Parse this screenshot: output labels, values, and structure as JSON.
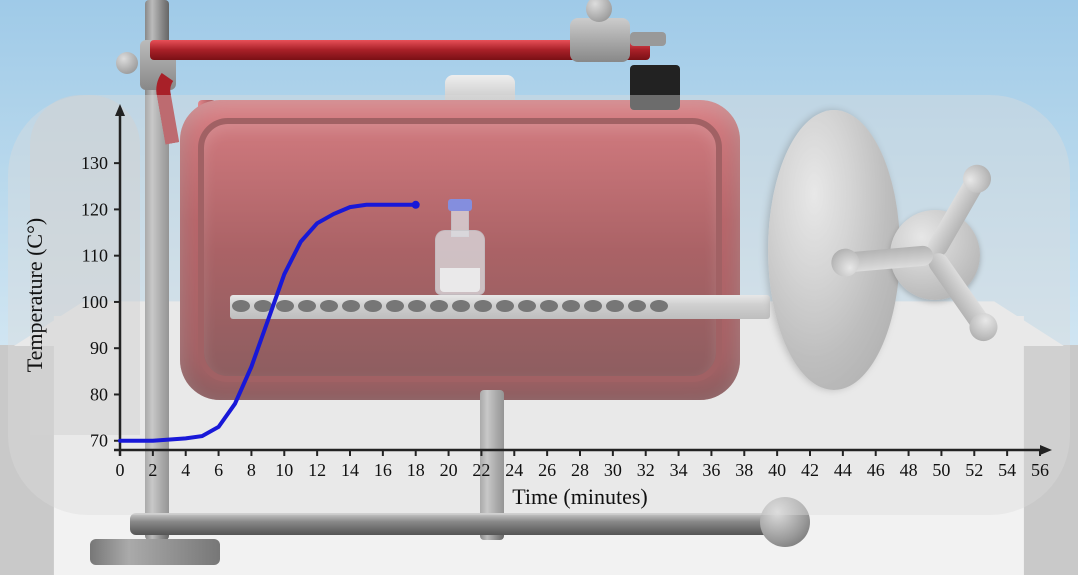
{
  "scene": {
    "sky_top": "#9fcae8",
    "sky_bottom": "#d0e5f2",
    "floor_color": "#c9c9c9",
    "floor_square_color": "#f2f2f2"
  },
  "autoclave": {
    "body_color_top": "#d84048",
    "body_color_mid": "#a81820",
    "body_color_bottom": "#7a0e14",
    "door_color": "#c0c0c0",
    "handle_color": "#b0b0b0",
    "shelf_color": "#d0d0d0",
    "bottle_cap_color": "#4a5ae0"
  },
  "chart": {
    "type": "line",
    "x_label": "Time (minutes)",
    "y_label": "Temperature (C°)",
    "label_fontsize": 22,
    "tick_fontsize": 18,
    "axis_color": "#222222",
    "line_color": "#1818d8",
    "line_width": 4,
    "overlay_bg": "rgba(220,220,220,0.4)",
    "x_ticks": [
      0,
      2,
      4,
      6,
      8,
      10,
      12,
      14,
      16,
      18,
      20,
      22,
      24,
      26,
      28,
      30,
      32,
      34,
      36,
      38,
      40,
      42,
      44,
      46,
      48,
      50,
      52,
      54,
      56
    ],
    "y_ticks": [
      70,
      80,
      90,
      100,
      110,
      120,
      130
    ],
    "xlim": [
      0,
      56
    ],
    "ylim": [
      68,
      135
    ],
    "series": {
      "x": [
        0,
        2,
        4,
        5,
        6,
        7,
        8,
        9,
        10,
        11,
        12,
        13,
        14,
        15,
        16,
        17,
        18
      ],
      "y": [
        70,
        70,
        70.5,
        71,
        73,
        78,
        86,
        96,
        106,
        113,
        117,
        119,
        120.5,
        121,
        121,
        121,
        121
      ]
    }
  }
}
